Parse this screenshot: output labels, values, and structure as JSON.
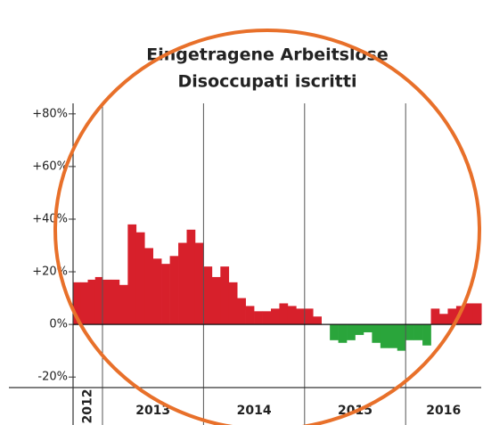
{
  "chart_data": {
    "type": "bar",
    "title": [
      "Eingetragene Arbeitslose",
      "Disoccupati iscritti"
    ],
    "groups": [
      {
        "label": "2012",
        "values": [
          16,
          16,
          17,
          18
        ]
      },
      {
        "label": "2013",
        "values": [
          17,
          17,
          15,
          38,
          35,
          29,
          25,
          23,
          26,
          31,
          36,
          31
        ]
      },
      {
        "label": "2014",
        "values": [
          22,
          18,
          22,
          16,
          10,
          7,
          5,
          5,
          6,
          8,
          7,
          6
        ]
      },
      {
        "label": "2015",
        "values": [
          6,
          3,
          0,
          -6,
          -7,
          -6,
          -4,
          -3,
          -7,
          -9,
          -9,
          -10
        ]
      },
      {
        "label": "2016",
        "values": [
          -6,
          -6,
          -8,
          6,
          4,
          6,
          7,
          8,
          8
        ]
      }
    ],
    "colors": {
      "positive": "#d7202b",
      "negative": "#2aa53b"
    },
    "ylim": [
      -24,
      84
    ],
    "yticks": [
      {
        "value": 80,
        "label": "+80%"
      },
      {
        "value": 60,
        "label": "+60%"
      },
      {
        "value": 40,
        "label": "+40%"
      },
      {
        "value": 20,
        "label": "+20%"
      },
      {
        "value": 0,
        "label": "0%"
      },
      {
        "value": -20,
        "label": "-20%"
      }
    ]
  }
}
